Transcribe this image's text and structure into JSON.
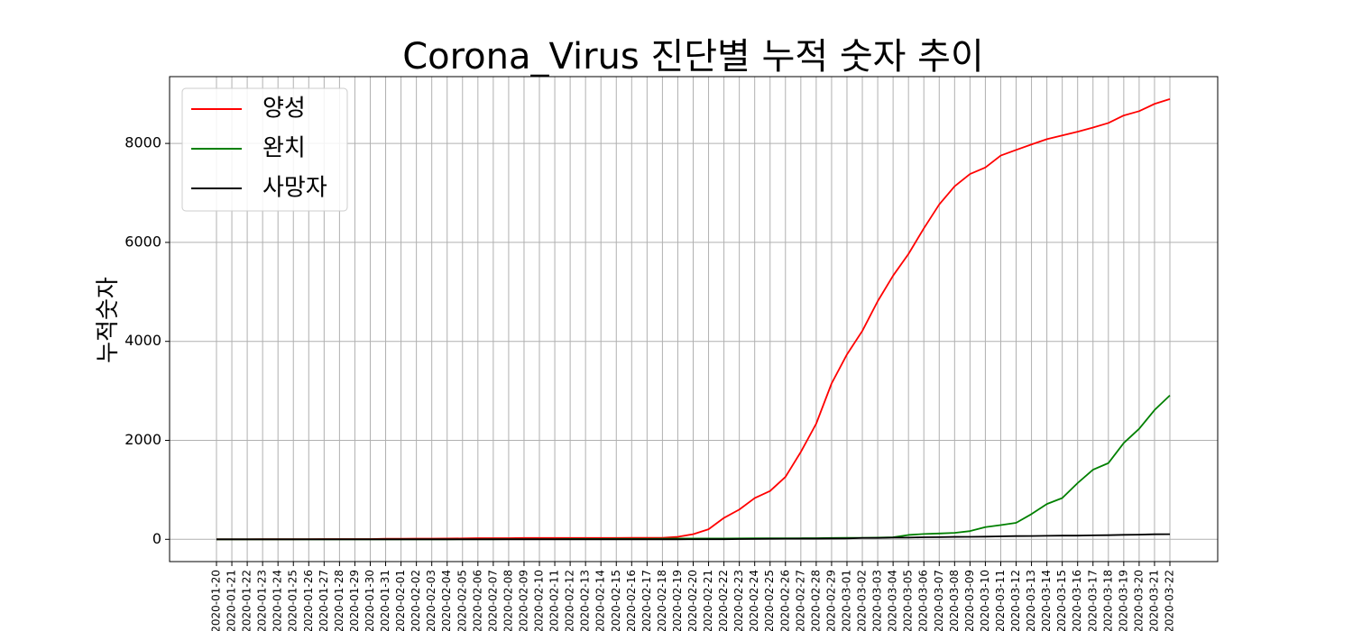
{
  "chart_data": {
    "type": "line",
    "title": "Corona_Virus 진단별 누적 숫자 추이",
    "xlabel": "",
    "ylabel": "누적숫자",
    "ylim": [
      -450,
      9350
    ],
    "yticks": [
      0,
      2000,
      4000,
      6000,
      8000
    ],
    "grid": true,
    "legend_position": "top-left",
    "x": [
      "2020-01-20",
      "2020-01-21",
      "2020-01-22",
      "2020-01-23",
      "2020-01-24",
      "2020-01-25",
      "2020-01-26",
      "2020-01-27",
      "2020-01-28",
      "2020-01-29",
      "2020-01-30",
      "2020-01-31",
      "2020-02-01",
      "2020-02-02",
      "2020-02-03",
      "2020-02-04",
      "2020-02-05",
      "2020-02-06",
      "2020-02-07",
      "2020-02-08",
      "2020-02-09",
      "2020-02-10",
      "2020-02-11",
      "2020-02-12",
      "2020-02-13",
      "2020-02-14",
      "2020-02-15",
      "2020-02-16",
      "2020-02-17",
      "2020-02-18",
      "2020-02-19",
      "2020-02-20",
      "2020-02-21",
      "2020-02-22",
      "2020-02-23",
      "2020-02-24",
      "2020-02-25",
      "2020-02-26",
      "2020-02-27",
      "2020-02-28",
      "2020-02-29",
      "2020-03-01",
      "2020-03-02",
      "2020-03-03",
      "2020-03-04",
      "2020-03-05",
      "2020-03-06",
      "2020-03-07",
      "2020-03-08",
      "2020-03-09",
      "2020-03-10",
      "2020-03-11",
      "2020-03-12",
      "2020-03-13",
      "2020-03-14",
      "2020-03-15",
      "2020-03-16",
      "2020-03-17",
      "2020-03-18",
      "2020-03-19",
      "2020-03-20",
      "2020-03-21",
      "2020-03-22"
    ],
    "series": [
      {
        "name": "양성",
        "color": "#ff0000",
        "values": [
          1,
          1,
          1,
          2,
          2,
          2,
          3,
          4,
          4,
          4,
          6,
          11,
          12,
          15,
          15,
          16,
          18,
          23,
          24,
          24,
          27,
          27,
          28,
          28,
          28,
          28,
          28,
          29,
          30,
          31,
          51,
          104,
          204,
          433,
          602,
          833,
          977,
          1261,
          1766,
          2337,
          3150,
          3736,
          4212,
          4812,
          5328,
          5766,
          6284,
          6767,
          7134,
          7382,
          7513,
          7755,
          7869,
          7979,
          8086,
          8162,
          8236,
          8320,
          8413,
          8565,
          8652,
          8799,
          8897
        ]
      },
      {
        "name": "완치",
        "color": "#008000",
        "values": [
          0,
          0,
          0,
          0,
          0,
          0,
          0,
          0,
          0,
          0,
          0,
          0,
          0,
          0,
          0,
          0,
          1,
          1,
          2,
          3,
          3,
          3,
          3,
          7,
          7,
          7,
          9,
          9,
          10,
          12,
          16,
          16,
          16,
          16,
          18,
          22,
          22,
          22,
          22,
          24,
          27,
          30,
          30,
          34,
          41,
          88,
          108,
          118,
          130,
          166,
          247,
          288,
          333,
          510,
          714,
          834,
          1137,
          1407,
          1540,
          1947,
          2233,
          2612,
          2909
        ]
      },
      {
        "name": "사망자",
        "color": "#000000",
        "values": [
          0,
          0,
          0,
          0,
          0,
          0,
          0,
          0,
          0,
          0,
          0,
          0,
          0,
          0,
          0,
          0,
          0,
          0,
          0,
          0,
          0,
          0,
          0,
          0,
          0,
          0,
          0,
          0,
          0,
          0,
          0,
          1,
          2,
          2,
          6,
          8,
          11,
          12,
          13,
          13,
          16,
          17,
          28,
          28,
          35,
          35,
          42,
          44,
          50,
          51,
          54,
          60,
          66,
          67,
          72,
          75,
          75,
          81,
          84,
          91,
          94,
          102,
          104
        ]
      }
    ]
  }
}
